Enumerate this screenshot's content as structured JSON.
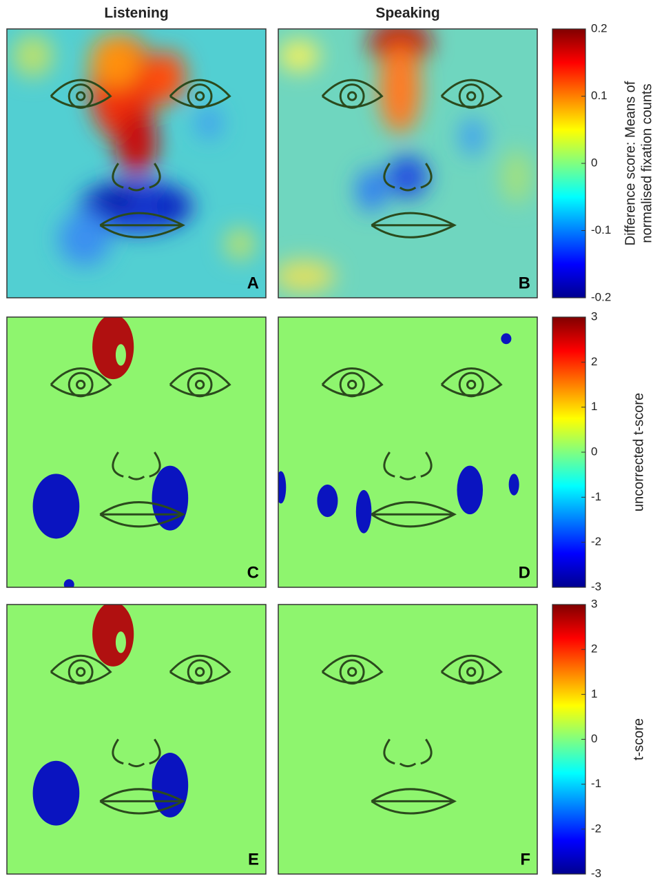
{
  "columns": [
    "Listening",
    "Speaking"
  ],
  "chart_data": [
    {
      "type": "heatmap",
      "panels": [
        "A",
        "B"
      ],
      "colorbar_label": [
        "Difference score: Means of",
        "normalised fixation counts"
      ],
      "clim": [
        -0.2,
        0.2
      ],
      "cticks": [
        -0.2,
        -0.1,
        0,
        0.1,
        0.2
      ],
      "smooth": true
    },
    {
      "type": "heatmap",
      "panels": [
        "C",
        "D"
      ],
      "colorbar_label": [
        "uncorrected t-score"
      ],
      "clim": [
        -3,
        3
      ],
      "cticks": [
        -3,
        -2,
        -1,
        0,
        1,
        2,
        3
      ],
      "smooth": false
    },
    {
      "type": "heatmap",
      "panels": [
        "E",
        "F"
      ],
      "colorbar_label": [
        "t-score"
      ],
      "clim": [
        -3,
        3
      ],
      "cticks": [
        -3,
        -2,
        -1,
        0,
        1,
        2,
        3
      ],
      "smooth": false
    }
  ]
}
